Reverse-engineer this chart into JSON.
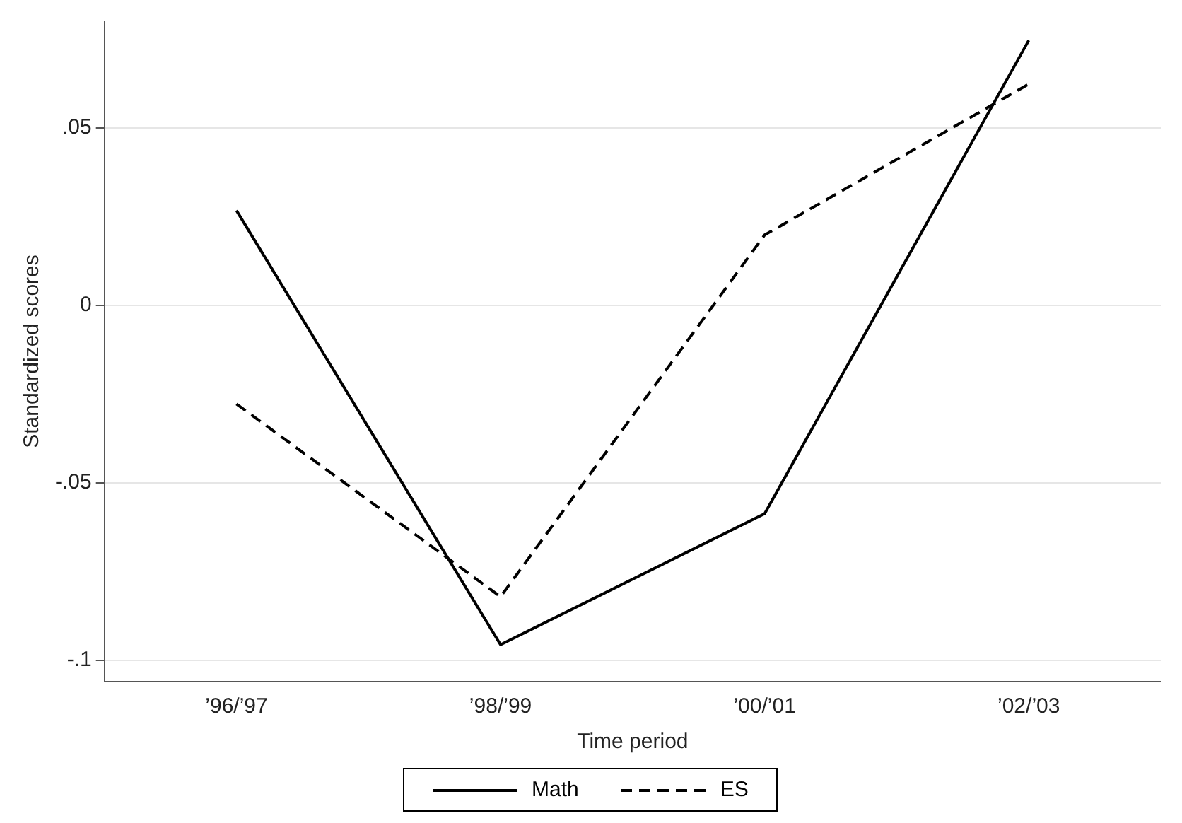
{
  "chart_data": {
    "type": "line",
    "xlabel": "Time period",
    "ylabel": "Standardized scores",
    "categories": [
      "’96/’97",
      "’98/’99",
      "’00/’01",
      "’02/’03"
    ],
    "series": [
      {
        "name": "Math",
        "color": "#000000",
        "line_style": "solid",
        "values": [
          0.0267,
          -0.0956,
          -0.0587,
          0.0746
        ]
      },
      {
        "name": "ES",
        "color": "#000000",
        "line_style": "dashed",
        "values": [
          -0.0278,
          -0.0821,
          0.0198,
          0.0623
        ]
      }
    ],
    "ylim": [
      -0.106,
      0.08
    ],
    "yticks": [
      {
        "value": -0.1,
        "label": "-.1"
      },
      {
        "value": -0.05,
        "label": "-.05"
      },
      {
        "value": 0,
        "label": "0"
      },
      {
        "value": 0.05,
        "label": ".05"
      }
    ],
    "grid": "y",
    "legend": "bottom",
    "marker": "none"
  }
}
